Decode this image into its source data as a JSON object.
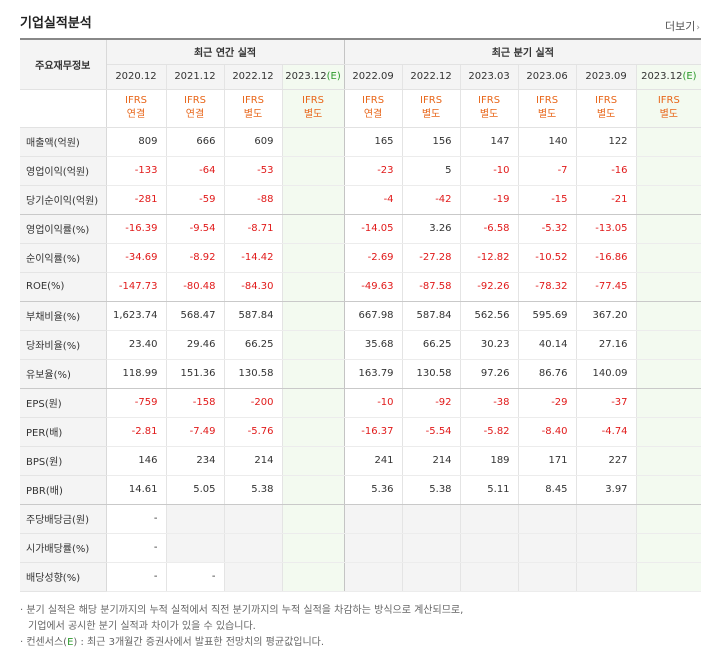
{
  "header": {
    "title": "기업실적분석",
    "more_label": "더보기"
  },
  "table": {
    "corner_label": "주요재무정보",
    "group_annual": "최근 연간 실적",
    "group_quarter": "최근 분기 실적",
    "periods": [
      "2020.12",
      "2021.12",
      "2022.12",
      "2023.12(E)",
      "2022.09",
      "2022.12",
      "2023.03",
      "2023.06",
      "2023.09",
      "2023.12(E)"
    ],
    "period_parts": [
      {
        "main": "2020.12",
        "est": ""
      },
      {
        "main": "2021.12",
        "est": ""
      },
      {
        "main": "2022.12",
        "est": ""
      },
      {
        "main": "2023.12",
        "est": "(E)"
      },
      {
        "main": "2022.09",
        "est": ""
      },
      {
        "main": "2022.12",
        "est": ""
      },
      {
        "main": "2023.03",
        "est": ""
      },
      {
        "main": "2023.06",
        "est": ""
      },
      {
        "main": "2023.09",
        "est": ""
      },
      {
        "main": "2023.12",
        "est": "(E)"
      }
    ],
    "standards": [
      {
        "line1": "IFRS",
        "line2": "연결"
      },
      {
        "line1": "IFRS",
        "line2": "연결"
      },
      {
        "line1": "IFRS",
        "line2": "별도"
      },
      {
        "line1": "IFRS",
        "line2": "별도"
      },
      {
        "line1": "IFRS",
        "line2": "연결"
      },
      {
        "line1": "IFRS",
        "line2": "별도"
      },
      {
        "line1": "IFRS",
        "line2": "별도"
      },
      {
        "line1": "IFRS",
        "line2": "별도"
      },
      {
        "line1": "IFRS",
        "line2": "별도"
      },
      {
        "line1": "IFRS",
        "line2": "별도"
      }
    ],
    "rows": [
      {
        "label": "매출액(억원)",
        "values": [
          "809",
          "666",
          "609",
          "",
          "165",
          "156",
          "147",
          "140",
          "122",
          ""
        ]
      },
      {
        "label": "영업이익(억원)",
        "values": [
          "-133",
          "-64",
          "-53",
          "",
          "-23",
          "5",
          "-10",
          "-7",
          "-16",
          ""
        ]
      },
      {
        "label": "당기순이익(억원)",
        "values": [
          "-281",
          "-59",
          "-88",
          "",
          "-4",
          "-42",
          "-19",
          "-15",
          "-21",
          ""
        ]
      },
      {
        "label": "영업이익률(%)",
        "values": [
          "-16.39",
          "-9.54",
          "-8.71",
          "",
          "-14.05",
          "3.26",
          "-6.58",
          "-5.32",
          "-13.05",
          ""
        ]
      },
      {
        "label": "순이익률(%)",
        "values": [
          "-34.69",
          "-8.92",
          "-14.42",
          "",
          "-2.69",
          "-27.28",
          "-12.82",
          "-10.52",
          "-16.86",
          ""
        ]
      },
      {
        "label": "ROE(%)",
        "values": [
          "-147.73",
          "-80.48",
          "-84.30",
          "",
          "-49.63",
          "-87.58",
          "-92.26",
          "-78.32",
          "-77.45",
          ""
        ]
      },
      {
        "label": "부채비율(%)",
        "values": [
          "1,623.74",
          "568.47",
          "587.84",
          "",
          "667.98",
          "587.84",
          "562.56",
          "595.69",
          "367.20",
          ""
        ]
      },
      {
        "label": "당좌비율(%)",
        "values": [
          "23.40",
          "29.46",
          "66.25",
          "",
          "35.68",
          "66.25",
          "30.23",
          "40.14",
          "27.16",
          ""
        ]
      },
      {
        "label": "유보율(%)",
        "values": [
          "118.99",
          "151.36",
          "130.58",
          "",
          "163.79",
          "130.58",
          "97.26",
          "86.76",
          "140.09",
          ""
        ]
      },
      {
        "label": "EPS(원)",
        "values": [
          "-759",
          "-158",
          "-200",
          "",
          "-10",
          "-92",
          "-38",
          "-29",
          "-37",
          ""
        ]
      },
      {
        "label": "PER(배)",
        "values": [
          "-2.81",
          "-7.49",
          "-5.76",
          "",
          "-16.37",
          "-5.54",
          "-5.82",
          "-8.40",
          "-4.74",
          ""
        ]
      },
      {
        "label": "BPS(원)",
        "values": [
          "146",
          "234",
          "214",
          "",
          "241",
          "214",
          "189",
          "171",
          "227",
          ""
        ]
      },
      {
        "label": "PBR(배)",
        "values": [
          "14.61",
          "5.05",
          "5.38",
          "",
          "5.36",
          "5.38",
          "5.11",
          "8.45",
          "3.97",
          ""
        ]
      },
      {
        "label": "주당배당금(원)",
        "values": [
          "-",
          "",
          "",
          "",
          "",
          "",
          "",
          "",
          "",
          ""
        ]
      },
      {
        "label": "시가배당률(%)",
        "values": [
          "-",
          "",
          "",
          "",
          "",
          "",
          "",
          "",
          "",
          ""
        ]
      },
      {
        "label": "배당성향(%)",
        "values": [
          "-",
          "-",
          "",
          "",
          "",
          "",
          "",
          "",
          "",
          ""
        ]
      }
    ]
  },
  "notes": {
    "line1": "· 분기 실적은 해당 분기까지의 누적 실적에서 직전 분기까지의 누적 실적을 차감하는 방식으로 계산되므로,",
    "line2": "기업에서 공시한 분기 실적과 차이가 있을 수 있습니다.",
    "line3_pre": "· 컨센서스(",
    "line3_est": "E",
    "line3_post": ") : 최근 3개월간 증권사에서 발표한 전망치의 평균값입니다."
  },
  "colors": {
    "negative": "#e11a1a",
    "ifrs": "#e8671b",
    "estimate": "#2c9a2c"
  }
}
